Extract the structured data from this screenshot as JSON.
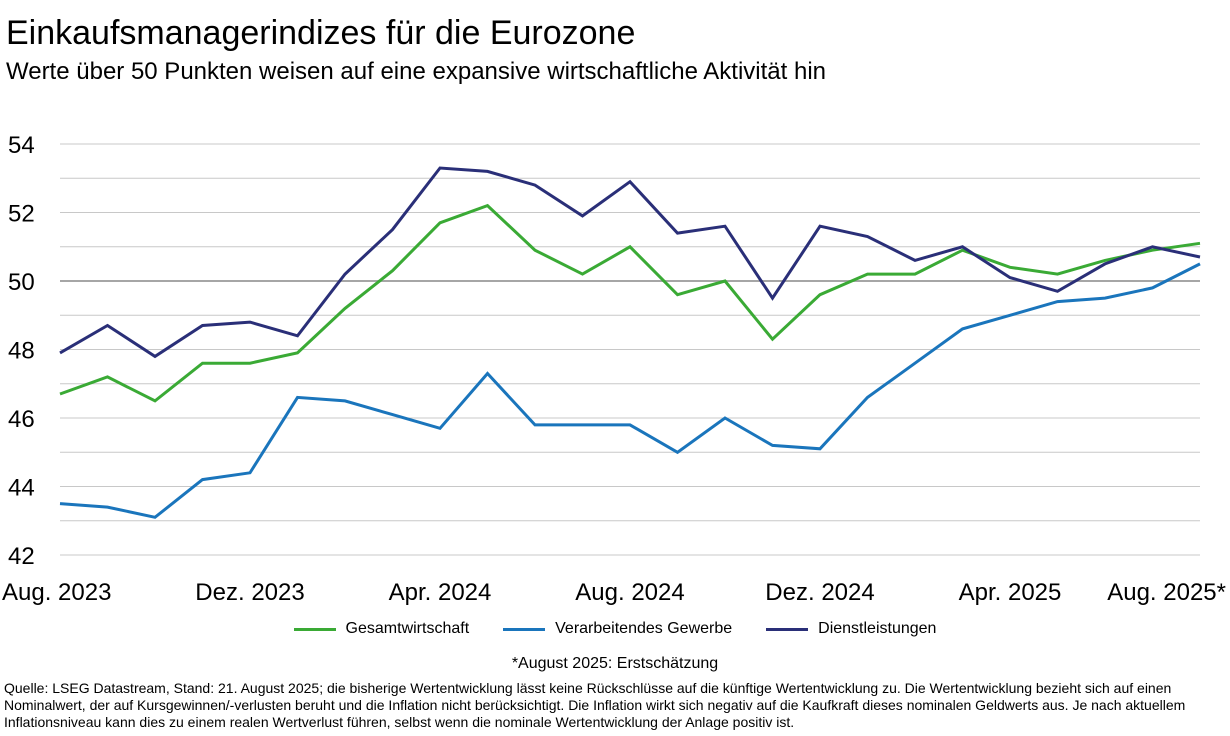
{
  "header": {
    "title": "Einkaufsmanagerindizes für die Eurozone",
    "subtitle": "Werte über 50 Punkten weisen auf eine expansive wirtschaftliche Aktivität hin"
  },
  "chart_data": {
    "type": "line",
    "x": [
      "Aug. 2023",
      "Sep. 2023",
      "Okt. 2023",
      "Nov. 2023",
      "Dez. 2023",
      "Jan. 2024",
      "Feb. 2024",
      "Mär. 2024",
      "Apr. 2024",
      "Mai 2024",
      "Jun. 2024",
      "Jul. 2024",
      "Aug. 2024",
      "Sep. 2024",
      "Okt. 2024",
      "Nov. 2024",
      "Dez. 2024",
      "Jan. 2025",
      "Feb. 2025",
      "Mär. 2025",
      "Apr. 2025",
      "Mai 2025",
      "Jun. 2025",
      "Jul. 2025",
      "Aug. 2025*"
    ],
    "xtick_labels": [
      "Aug. 2023",
      "Dez. 2023",
      "Apr. 2024",
      "Aug. 2024",
      "Dez. 2024",
      "Apr. 2025",
      "Aug. 2025*"
    ],
    "xtick_indices": [
      0,
      4,
      8,
      12,
      16,
      20,
      24
    ],
    "ylim": [
      42,
      54
    ],
    "yticks": [
      42,
      44,
      46,
      48,
      50,
      52,
      54
    ],
    "reference_line": 50,
    "grid": true,
    "legend_position": "bottom",
    "series": [
      {
        "name": "Gesamtwirtschaft",
        "color": "#3aaa35",
        "values": [
          46.7,
          47.2,
          46.5,
          47.6,
          47.6,
          47.9,
          49.2,
          50.3,
          51.7,
          52.2,
          50.9,
          50.2,
          51.0,
          49.6,
          50.0,
          48.3,
          49.6,
          50.2,
          50.2,
          50.9,
          50.4,
          50.2,
          50.6,
          50.9,
          51.1
        ]
      },
      {
        "name": "Verarbeitendes Gewerbe",
        "color": "#1a75bc",
        "values": [
          43.5,
          43.4,
          43.1,
          44.2,
          44.4,
          46.6,
          46.5,
          46.1,
          45.7,
          47.3,
          45.8,
          45.8,
          45.8,
          45.0,
          46.0,
          45.2,
          45.1,
          46.6,
          47.6,
          48.6,
          49.0,
          49.4,
          49.5,
          49.8,
          50.5
        ]
      },
      {
        "name": "Dienstleistungen",
        "color": "#2a2f78",
        "values": [
          47.9,
          48.7,
          47.8,
          48.7,
          48.8,
          48.4,
          50.2,
          51.5,
          53.3,
          53.2,
          52.8,
          51.9,
          52.9,
          51.4,
          51.6,
          49.5,
          51.6,
          51.3,
          50.6,
          51.0,
          50.1,
          49.7,
          50.5,
          51.0,
          50.7
        ]
      }
    ]
  },
  "footnote": "*August 2025: Erstschätzung",
  "source": "Quelle: LSEG Datastream, Stand: 21. August 2025; die bisherige Wertentwicklung lässt keine Rückschlüsse auf die künftige Wertentwicklung zu. Die Wertentwicklung bezieht sich auf einen Nominalwert, der auf Kursgewinnen/-verlusten beruht und die Inflation nicht berücksichtigt. Die Inflation wirkt sich negativ auf die Kaufkraft dieses nominalen Geldwerts aus. Je nach aktuellem Inflationsniveau kann dies zu einem realen Wertverlust führen, selbst wenn die nominale Wertentwicklung der Anlage positiv ist."
}
